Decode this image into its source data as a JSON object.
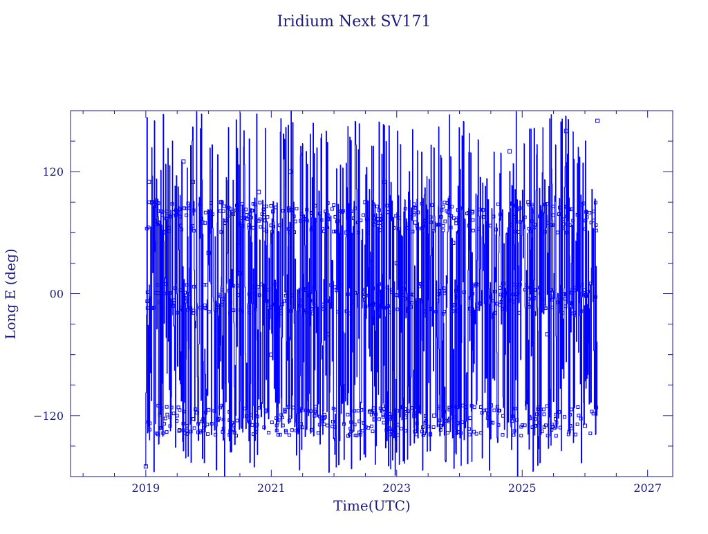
{
  "chart_data": {
    "type": "line",
    "title": "Iridium Next SV171",
    "xlabel": "Time(UTC)",
    "ylabel": "Long E (deg)",
    "xlim": [
      2017.8,
      2027.4
    ],
    "ylim": [
      -180,
      180
    ],
    "x_ticks": [
      2019,
      2021,
      2023,
      2025,
      2027
    ],
    "x_tick_labels": [
      "2019",
      "2021",
      "2023",
      "2025",
      "2027"
    ],
    "y_ticks": [
      -120,
      0,
      120
    ],
    "y_tick_labels": [
      "−120",
      "00",
      "120"
    ],
    "grid": false,
    "series": [
      {
        "marker": "square",
        "x_start": 2019.0,
        "x_end": 2026.2,
        "x": [
          2019.0,
          2019.05,
          2019.1,
          2019.2,
          2019.3,
          2019.45,
          2019.6,
          2019.75,
          2019.9,
          2020.0,
          2020.2,
          2020.5,
          2020.8,
          2021.0,
          2021.3,
          2021.6,
          2021.9,
          2022.2,
          2022.5,
          2022.8,
          2023.0,
          2023.3,
          2023.6,
          2023.9,
          2024.2,
          2024.5,
          2024.8,
          2025.1,
          2025.4,
          2025.7,
          2026.0,
          2026.2
        ],
        "y": [
          -170,
          110,
          90,
          70,
          60,
          80,
          130,
          110,
          70,
          40,
          90,
          20,
          100,
          -60,
          120,
          0,
          -40,
          60,
          90,
          110,
          30,
          70,
          -120,
          50,
          80,
          -110,
          140,
          90,
          -40,
          160,
          -130,
          170
        ],
        "visible_bands": [
          75,
          -5,
          -125
        ],
        "color": "#0000ff"
      }
    ],
    "colors": {
      "axis": "#1a1a80",
      "data": "#0000ff",
      "background": "#ffffff"
    }
  }
}
